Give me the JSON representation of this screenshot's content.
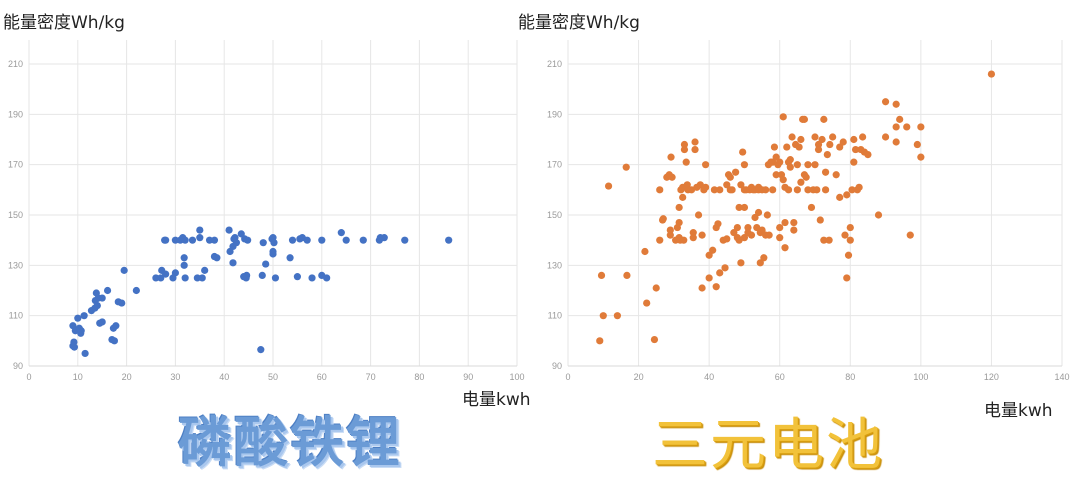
{
  "chart_data": [
    {
      "type": "scatter",
      "title": "磷酸铁锂",
      "xlabel": "电量kwh",
      "ylabel": "能量密度Wh/kg",
      "xlim": [
        0,
        100
      ],
      "ylim": [
        90,
        220
      ],
      "xticks": [
        0,
        10,
        20,
        30,
        40,
        50,
        60,
        70,
        80,
        90,
        100
      ],
      "yticks": [
        90,
        110,
        130,
        150,
        170,
        190,
        210
      ],
      "grid": true,
      "legend": "none",
      "color": "#4472c4",
      "points": [
        [
          9,
          98
        ],
        [
          9.2,
          99.5
        ],
        [
          9.3,
          97.5
        ],
        [
          9,
          106
        ],
        [
          9.5,
          104
        ],
        [
          10,
          109
        ],
        [
          10.3,
          105
        ],
        [
          10.6,
          103
        ],
        [
          10.7,
          104
        ],
        [
          11.5,
          95
        ],
        [
          11.3,
          110
        ],
        [
          12.8,
          112
        ],
        [
          13.5,
          113
        ],
        [
          13.6,
          116
        ],
        [
          13.8,
          119
        ],
        [
          14,
          114
        ],
        [
          14.2,
          117
        ],
        [
          14.5,
          107
        ],
        [
          15,
          107.5
        ],
        [
          15,
          117
        ],
        [
          16.1,
          120
        ],
        [
          17,
          100.5
        ],
        [
          17.5,
          100
        ],
        [
          17.3,
          105
        ],
        [
          17.8,
          106
        ],
        [
          18.3,
          115.5
        ],
        [
          19,
          115
        ],
        [
          19.5,
          128
        ],
        [
          22,
          120
        ],
        [
          26,
          125
        ],
        [
          27,
          125
        ],
        [
          27.2,
          128
        ],
        [
          28,
          126.5
        ],
        [
          27.8,
          140
        ],
        [
          28,
          140
        ],
        [
          29.5,
          125
        ],
        [
          30,
          127
        ],
        [
          30,
          140
        ],
        [
          31,
          140
        ],
        [
          31.5,
          141
        ],
        [
          32,
          140
        ],
        [
          31.8,
          133
        ],
        [
          31.8,
          130
        ],
        [
          32,
          125
        ],
        [
          33.5,
          140
        ],
        [
          34.5,
          125
        ],
        [
          35,
          144
        ],
        [
          35,
          141
        ],
        [
          35.5,
          125
        ],
        [
          36,
          128
        ],
        [
          37,
          140
        ],
        [
          38,
          140
        ],
        [
          38,
          133.5
        ],
        [
          38.5,
          133
        ],
        [
          41,
          144
        ],
        [
          41.2,
          135.5
        ],
        [
          41.8,
          137.5
        ],
        [
          41.8,
          131
        ],
        [
          42,
          140.5
        ],
        [
          42.2,
          141
        ],
        [
          42.5,
          139
        ],
        [
          43.5,
          142.5
        ],
        [
          44,
          125.5
        ],
        [
          44.2,
          140.5
        ],
        [
          44.5,
          125
        ],
        [
          44.8,
          140
        ],
        [
          44.6,
          126
        ],
        [
          47.5,
          96.5
        ],
        [
          47.8,
          126
        ],
        [
          48,
          139
        ],
        [
          48.5,
          130.5
        ],
        [
          49.8,
          140.5
        ],
        [
          50,
          141
        ],
        [
          50,
          134.5
        ],
        [
          50,
          135.5
        ],
        [
          50.2,
          139
        ],
        [
          50.5,
          125
        ],
        [
          53.5,
          133
        ],
        [
          54,
          140
        ],
        [
          55,
          125.5
        ],
        [
          55.5,
          140.5
        ],
        [
          56,
          141
        ],
        [
          57,
          140
        ],
        [
          58,
          125
        ],
        [
          60,
          140
        ],
        [
          60,
          126
        ],
        [
          61,
          125
        ],
        [
          64,
          143
        ],
        [
          65,
          140
        ],
        [
          68.5,
          140
        ],
        [
          71.8,
          140
        ],
        [
          72,
          141
        ],
        [
          72.8,
          141
        ],
        [
          77,
          140
        ],
        [
          86,
          140
        ]
      ]
    },
    {
      "type": "scatter",
      "title": "三元电池",
      "xlabel": "电量kwh",
      "ylabel": "能量密度Wh/kg",
      "xlim": [
        0,
        140
      ],
      "ylim": [
        90,
        220
      ],
      "xticks": [
        0,
        20,
        40,
        60,
        80,
        100,
        120,
        140
      ],
      "yticks": [
        90,
        110,
        130,
        150,
        170,
        190,
        210
      ],
      "grid": true,
      "legend": "none",
      "color": "#e07b39",
      "points": [
        [
          9,
          100
        ],
        [
          9.5,
          126
        ],
        [
          10,
          110
        ],
        [
          11.5,
          161.5
        ],
        [
          14,
          110
        ],
        [
          16.5,
          169
        ],
        [
          16.7,
          126
        ],
        [
          21.8,
          135.5
        ],
        [
          22.3,
          115
        ],
        [
          24.5,
          100.5
        ],
        [
          25,
          121
        ],
        [
          26,
          140
        ],
        [
          26,
          160
        ],
        [
          26.8,
          148
        ],
        [
          27,
          148.5
        ],
        [
          28,
          165
        ],
        [
          28.7,
          166
        ],
        [
          29,
          142
        ],
        [
          29,
          144
        ],
        [
          29.2,
          173
        ],
        [
          29.5,
          165
        ],
        [
          30.5,
          140
        ],
        [
          31,
          145
        ],
        [
          31.5,
          141
        ],
        [
          31.5,
          147
        ],
        [
          31.5,
          153
        ],
        [
          31.8,
          140
        ],
        [
          32,
          160
        ],
        [
          32.5,
          161
        ],
        [
          32.8,
          140
        ],
        [
          32.5,
          157
        ],
        [
          33,
          178
        ],
        [
          33,
          176
        ],
        [
          33.5,
          171
        ],
        [
          33.8,
          162
        ],
        [
          34,
          160
        ],
        [
          35,
          160
        ],
        [
          35.5,
          143
        ],
        [
          35.5,
          141
        ],
        [
          36,
          179
        ],
        [
          36,
          176
        ],
        [
          36.5,
          161
        ],
        [
          37,
          150
        ],
        [
          37.5,
          162
        ],
        [
          38,
          121
        ],
        [
          38,
          142
        ],
        [
          38.5,
          160
        ],
        [
          39,
          170
        ],
        [
          39,
          161
        ],
        [
          40,
          125
        ],
        [
          40,
          134
        ],
        [
          41,
          136
        ],
        [
          41.5,
          160
        ],
        [
          42,
          121.5
        ],
        [
          42,
          145
        ],
        [
          42.5,
          146.5
        ],
        [
          43,
          160
        ],
        [
          43,
          127
        ],
        [
          44,
          140
        ],
        [
          44.5,
          129
        ],
        [
          45,
          140.5
        ],
        [
          45,
          162
        ],
        [
          45.5,
          166
        ],
        [
          46,
          160
        ],
        [
          46,
          165
        ],
        [
          46.5,
          160
        ],
        [
          47,
          143
        ],
        [
          47.5,
          167
        ],
        [
          48,
          145
        ],
        [
          48,
          141
        ],
        [
          48.5,
          140
        ],
        [
          48.5,
          153
        ],
        [
          49,
          131
        ],
        [
          49,
          162
        ],
        [
          49.5,
          175
        ],
        [
          50,
          170
        ],
        [
          50,
          160
        ],
        [
          50,
          153
        ],
        [
          50,
          141
        ],
        [
          50.5,
          160
        ],
        [
          51,
          143
        ],
        [
          51,
          145
        ],
        [
          51.5,
          160
        ],
        [
          52,
          142
        ],
        [
          52,
          161
        ],
        [
          52.5,
          160
        ],
        [
          53,
          160
        ],
        [
          53,
          149
        ],
        [
          53.5,
          145
        ],
        [
          54,
          151
        ],
        [
          54,
          161
        ],
        [
          54,
          160
        ],
        [
          54.5,
          131
        ],
        [
          54.5,
          143
        ],
        [
          55,
          160
        ],
        [
          55,
          144
        ],
        [
          55.5,
          133
        ],
        [
          56,
          160
        ],
        [
          56,
          142
        ],
        [
          56.5,
          150
        ],
        [
          56.8,
          170
        ],
        [
          57,
          142
        ],
        [
          57.5,
          171
        ],
        [
          58,
          160
        ],
        [
          58,
          171
        ],
        [
          58.5,
          177
        ],
        [
          59,
          173
        ],
        [
          59,
          166
        ],
        [
          59.5,
          170
        ],
        [
          60,
          145
        ],
        [
          60,
          141
        ],
        [
          60,
          171
        ],
        [
          60.5,
          166
        ],
        [
          61,
          189
        ],
        [
          61,
          164
        ],
        [
          61.5,
          137
        ],
        [
          61.5,
          147
        ],
        [
          61.5,
          161
        ],
        [
          62,
          177
        ],
        [
          62.5,
          160
        ],
        [
          62.5,
          171
        ],
        [
          63,
          172
        ],
        [
          63,
          169
        ],
        [
          63.5,
          181
        ],
        [
          64,
          144
        ],
        [
          64,
          147
        ],
        [
          64.5,
          178
        ],
        [
          65,
          160
        ],
        [
          65,
          170
        ],
        [
          65.5,
          177
        ],
        [
          66,
          163
        ],
        [
          66,
          180
        ],
        [
          66.5,
          188
        ],
        [
          67,
          188
        ],
        [
          67,
          166
        ],
        [
          67.5,
          165
        ],
        [
          68,
          170
        ],
        [
          68,
          160
        ],
        [
          69,
          153
        ],
        [
          69.5,
          160
        ],
        [
          70,
          170
        ],
        [
          70,
          181
        ],
        [
          70.5,
          160
        ],
        [
          71,
          178
        ],
        [
          71,
          176
        ],
        [
          71.5,
          148
        ],
        [
          72,
          180
        ],
        [
          72.5,
          140
        ],
        [
          72.5,
          188
        ],
        [
          73,
          160
        ],
        [
          73,
          167
        ],
        [
          73.5,
          174
        ],
        [
          74,
          140
        ],
        [
          74.2,
          178
        ],
        [
          75,
          181
        ],
        [
          76,
          166
        ],
        [
          77,
          177
        ],
        [
          77,
          157
        ],
        [
          78,
          179
        ],
        [
          78.5,
          142
        ],
        [
          79,
          158
        ],
        [
          79,
          125
        ],
        [
          79.5,
          134
        ],
        [
          80,
          145
        ],
        [
          80,
          140
        ],
        [
          80.5,
          160
        ],
        [
          81,
          171
        ],
        [
          81,
          180
        ],
        [
          81.5,
          176
        ],
        [
          82,
          160
        ],
        [
          82.5,
          161
        ],
        [
          83,
          176
        ],
        [
          83.5,
          181
        ],
        [
          84,
          175
        ],
        [
          85,
          174
        ],
        [
          88,
          150
        ],
        [
          90,
          195
        ],
        [
          90,
          181
        ],
        [
          93,
          194
        ],
        [
          93,
          185
        ],
        [
          93,
          179
        ],
        [
          94,
          188
        ],
        [
          96,
          185
        ],
        [
          97,
          142
        ],
        [
          99,
          178
        ],
        [
          100,
          185
        ],
        [
          100,
          173
        ],
        [
          120,
          206
        ]
      ]
    }
  ],
  "left": {
    "ylabel": "能量密度Wh/kg",
    "xlabel": "电量kwh",
    "title": "磷酸铁锂",
    "title_color": "#6b9bd6",
    "dot_color": "#4472c4"
  },
  "right": {
    "ylabel": "能量密度Wh/kg",
    "xlabel": "电量kwh",
    "title": "三元电池",
    "title_color": "#f2c23a",
    "dot_color": "#e07b39"
  }
}
